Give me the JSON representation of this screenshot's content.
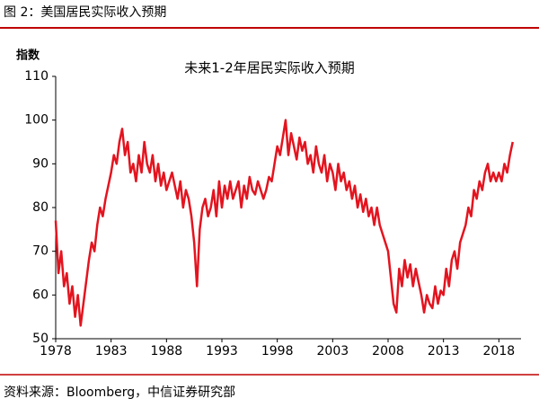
{
  "header": {
    "title": "图 2：美国居民实际收入预期"
  },
  "footer": {
    "source": "资料来源：Bloomberg，中信证券研究部"
  },
  "chart_data": {
    "type": "line",
    "title": "未来1-2年居民实际收入预期",
    "ylabel": "指数",
    "x": [
      1978,
      1978.25,
      1978.5,
      1978.75,
      1979,
      1979.25,
      1979.5,
      1979.75,
      1980,
      1980.25,
      1980.5,
      1980.75,
      1981,
      1981.25,
      1981.5,
      1981.75,
      1982,
      1982.25,
      1982.5,
      1982.75,
      1983,
      1983.25,
      1983.5,
      1983.75,
      1984,
      1984.25,
      1984.5,
      1984.75,
      1985,
      1985.25,
      1985.5,
      1985.75,
      1986,
      1986.25,
      1986.5,
      1986.75,
      1987,
      1987.25,
      1987.5,
      1987.75,
      1988,
      1988.25,
      1988.5,
      1988.75,
      1989,
      1989.25,
      1989.5,
      1989.75,
      1990,
      1990.25,
      1990.5,
      1990.75,
      1991,
      1991.25,
      1991.5,
      1991.75,
      1992,
      1992.25,
      1992.5,
      1992.75,
      1993,
      1993.25,
      1993.5,
      1993.75,
      1994,
      1994.25,
      1994.5,
      1994.75,
      1995,
      1995.25,
      1995.5,
      1995.75,
      1996,
      1996.25,
      1996.5,
      1996.75,
      1997,
      1997.25,
      1997.5,
      1997.75,
      1998,
      1998.25,
      1998.5,
      1998.75,
      1999,
      1999.25,
      1999.5,
      1999.75,
      2000,
      2000.25,
      2000.5,
      2000.75,
      2001,
      2001.25,
      2001.5,
      2001.75,
      2002,
      2002.25,
      2002.5,
      2002.75,
      2003,
      2003.25,
      2003.5,
      2003.75,
      2004,
      2004.25,
      2004.5,
      2004.75,
      2005,
      2005.25,
      2005.5,
      2005.75,
      2006,
      2006.25,
      2006.5,
      2006.75,
      2007,
      2007.25,
      2007.5,
      2007.75,
      2008,
      2008.25,
      2008.5,
      2008.75,
      2009,
      2009.25,
      2009.5,
      2009.75,
      2010,
      2010.25,
      2010.5,
      2010.75,
      2011,
      2011.25,
      2011.5,
      2011.75,
      2012,
      2012.25,
      2012.5,
      2012.75,
      2013,
      2013.25,
      2013.5,
      2013.75,
      2014,
      2014.25,
      2014.5,
      2014.75,
      2015,
      2015.25,
      2015.5,
      2015.75,
      2016,
      2016.25,
      2016.5,
      2016.75,
      2017,
      2017.25,
      2017.5,
      2017.75,
      2018,
      2018.25,
      2018.5,
      2018.75,
      2019,
      2019.25
    ],
    "series": [
      {
        "name": "未来1-2年居民实际收入预期",
        "color": "#e3141f",
        "values": [
          77,
          65,
          70,
          62,
          65,
          58,
          62,
          55,
          60,
          53,
          58,
          63,
          68,
          72,
          70,
          76,
          80,
          78,
          82,
          85,
          88,
          92,
          90,
          95,
          98,
          92,
          95,
          88,
          90,
          86,
          92,
          88,
          95,
          90,
          88,
          92,
          86,
          90,
          85,
          88,
          84,
          86,
          88,
          85,
          82,
          86,
          80,
          84,
          82,
          78,
          72,
          62,
          75,
          80,
          82,
          78,
          80,
          84,
          78,
          86,
          80,
          85,
          82,
          86,
          82,
          84,
          86,
          80,
          85,
          82,
          87,
          84,
          83,
          86,
          84,
          82,
          84,
          87,
          86,
          90,
          94,
          92,
          96,
          100,
          92,
          97,
          94,
          91,
          96,
          93,
          95,
          90,
          92,
          88,
          94,
          90,
          88,
          92,
          86,
          90,
          88,
          84,
          90,
          86,
          88,
          84,
          86,
          82,
          85,
          80,
          83,
          79,
          82,
          78,
          80,
          76,
          80,
          76,
          74,
          72,
          70,
          64,
          58,
          56,
          66,
          62,
          68,
          64,
          67,
          62,
          66,
          63,
          60,
          56,
          60,
          58,
          57,
          62,
          58,
          61,
          60,
          66,
          62,
          68,
          70,
          66,
          72,
          74,
          76,
          80,
          78,
          84,
          82,
          86,
          84,
          88,
          90,
          86,
          88,
          86,
          88,
          86,
          90,
          88,
          92,
          95
        ]
      }
    ],
    "xlim": [
      1978,
      2020
    ],
    "xticks": [
      1978,
      1983,
      1988,
      1993,
      1998,
      2003,
      2008,
      2013,
      2018
    ],
    "ylim": [
      50,
      110
    ],
    "yticks": [
      50,
      60,
      70,
      80,
      90,
      100,
      110
    ],
    "grid": false
  }
}
